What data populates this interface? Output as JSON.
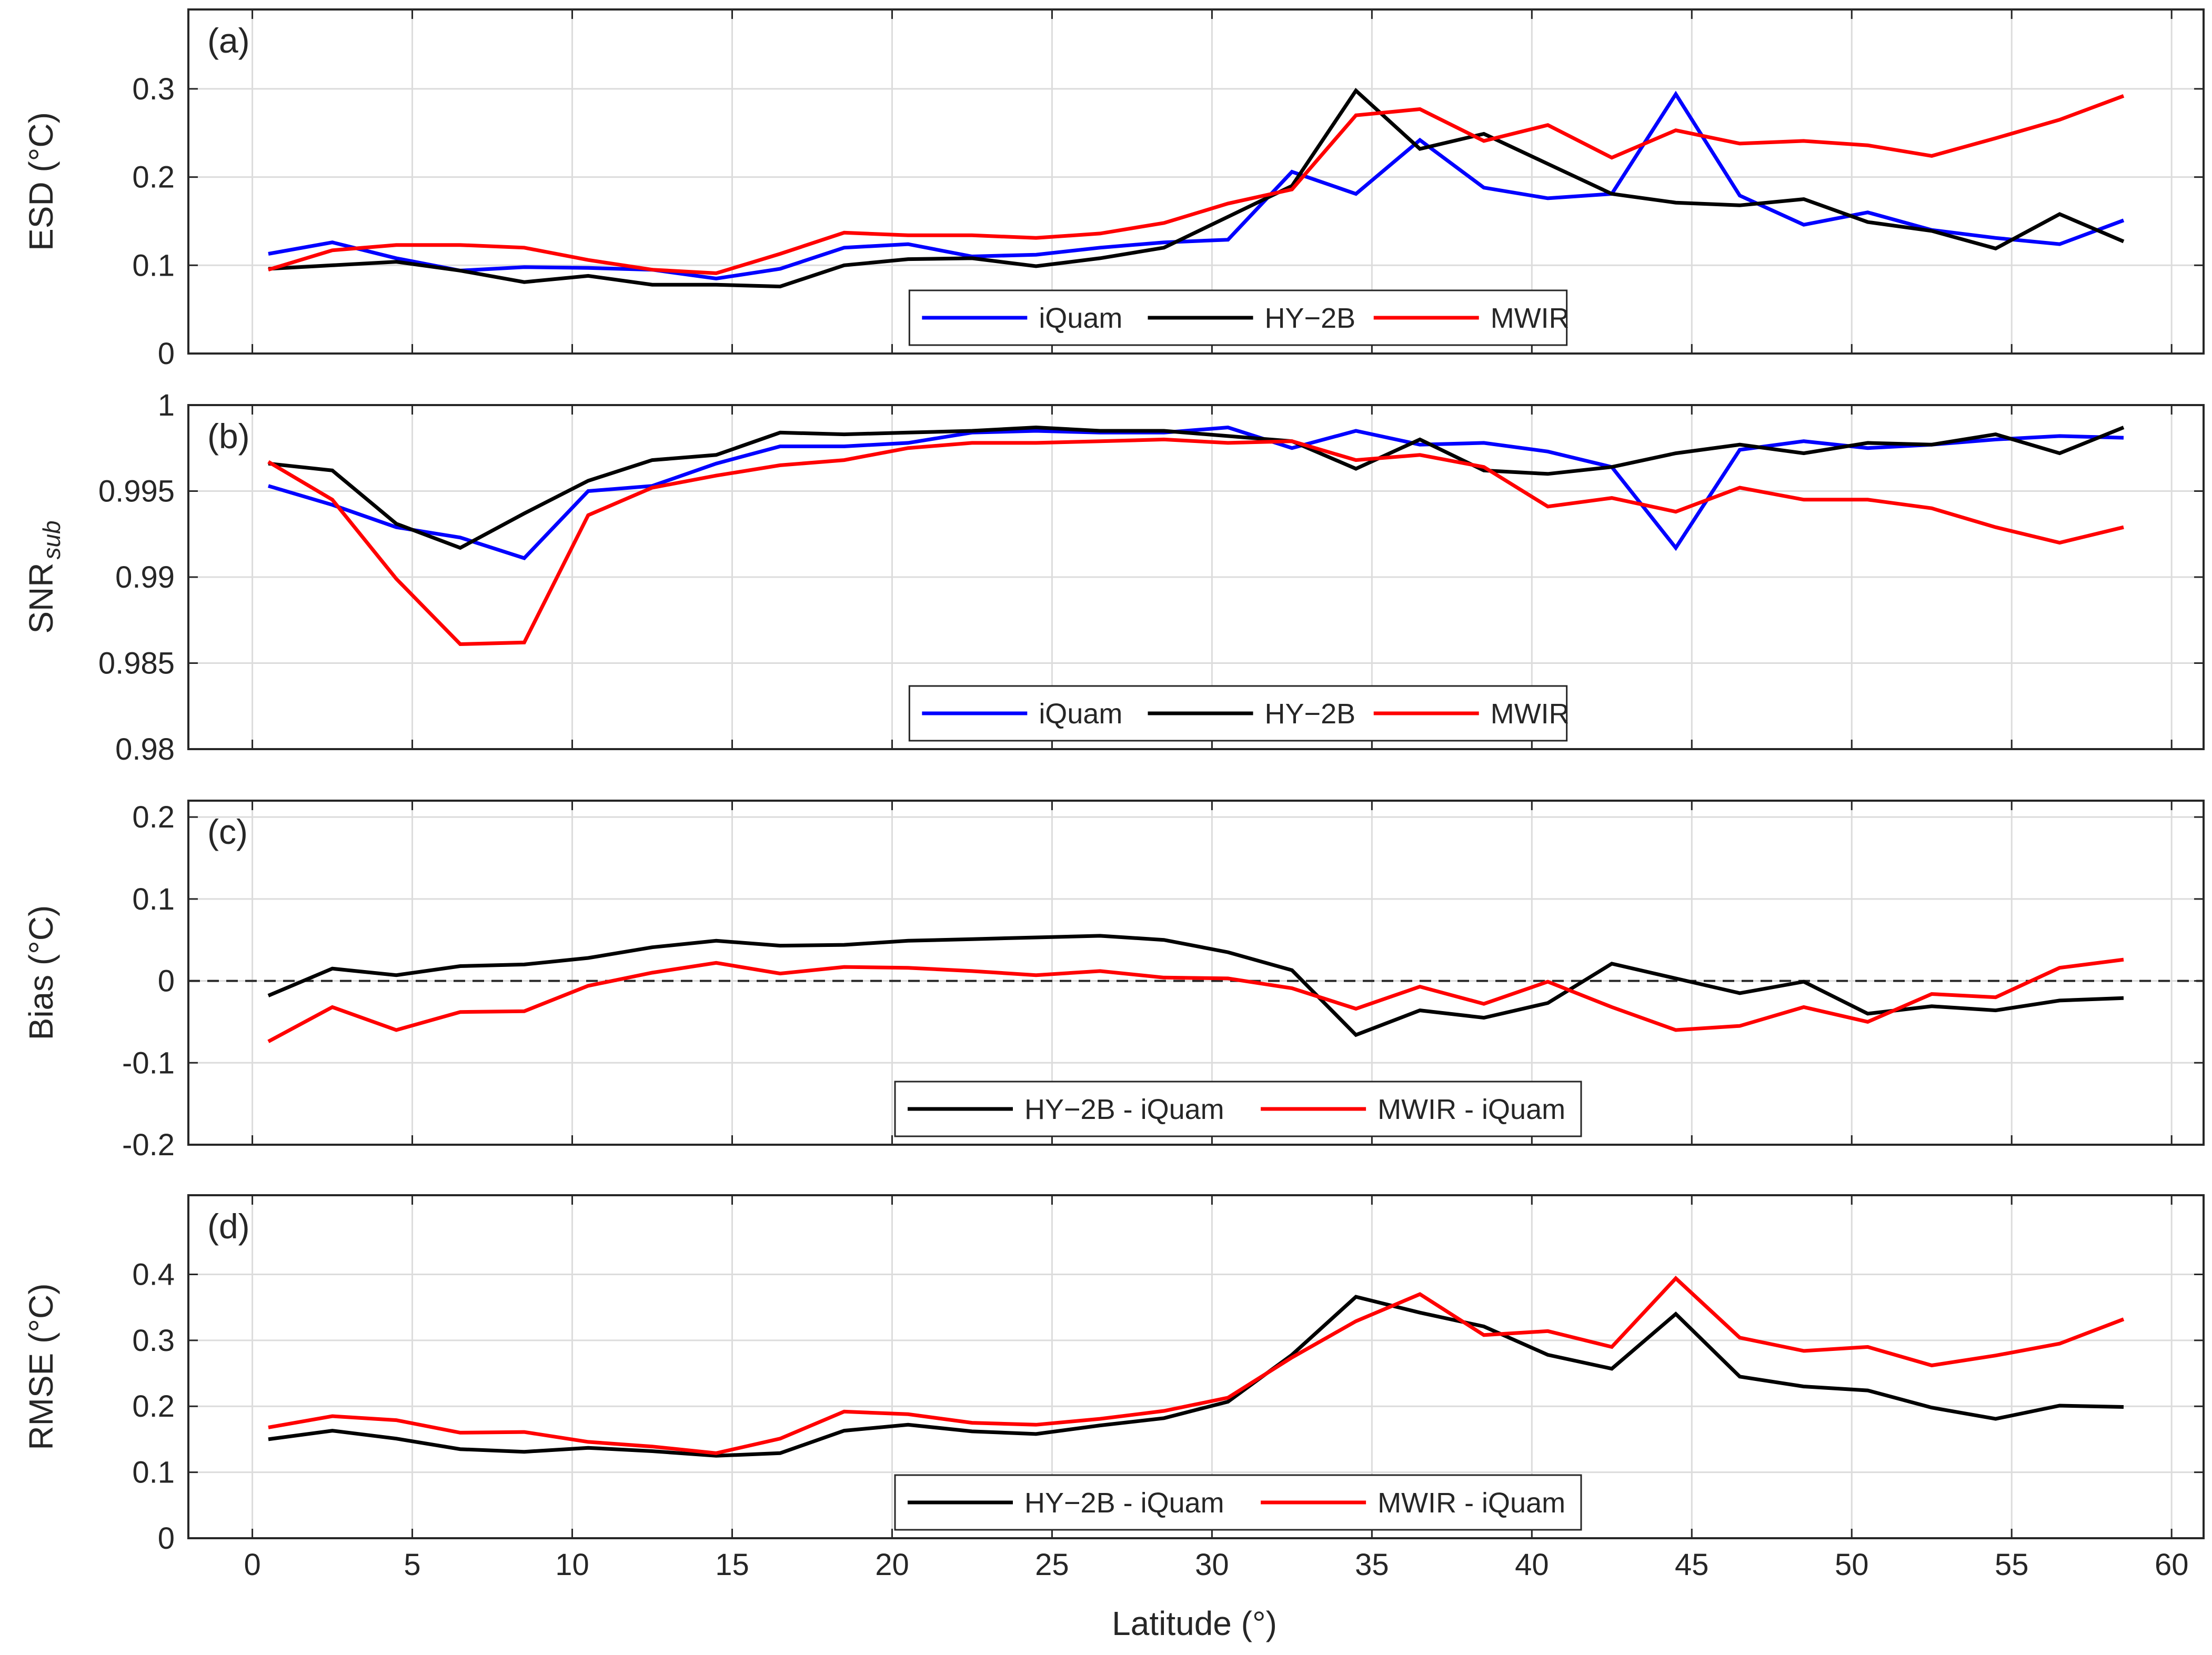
{
  "figure": {
    "xlabel": "Latitude (°)"
  },
  "colors": {
    "iQuam": "#0000ff",
    "HY-2B": "#000000",
    "MWIR": "#ff0000",
    "zero_line": "#262626"
  },
  "chart_data": [
    {
      "type": "line",
      "panel_tag": "(a)",
      "ylabel": "ESD (°C)",
      "ylabel_sub": "",
      "xlim": [
        -2,
        61
      ],
      "ylim": [
        0,
        0.39
      ],
      "xticks": [
        0,
        5,
        10,
        15,
        20,
        25,
        30,
        35,
        40,
        45,
        50,
        55,
        60
      ],
      "xtick_labels": [
        "0",
        "5",
        "10",
        "15",
        "20",
        "25",
        "30",
        "35",
        "40",
        "45",
        "50",
        "55",
        "60"
      ],
      "yticks": [
        0,
        0.1,
        0.2,
        0.3
      ],
      "ytick_labels": [
        "0",
        "0.1",
        "0.2",
        "0.3"
      ],
      "zero_line": false,
      "legend_position": "bottom-center",
      "x": [
        0.5,
        2.5,
        4.5,
        6.5,
        8.5,
        10.5,
        12.5,
        14.5,
        16.5,
        18.5,
        20.5,
        22.5,
        24.5,
        26.5,
        28.5,
        30.5,
        32.5,
        34.5,
        36.5,
        38.5,
        40.5,
        42.5,
        44.5,
        46.5,
        48.5,
        50.5,
        52.5,
        54.5,
        56.5,
        58.5
      ],
      "series": [
        {
          "name": "iQuam",
          "color_key": "iQuam",
          "values": [
            0.113,
            0.126,
            0.108,
            0.094,
            0.098,
            0.097,
            0.095,
            0.085,
            0.096,
            0.12,
            0.124,
            0.11,
            0.112,
            0.12,
            0.126,
            0.129,
            0.206,
            0.181,
            0.242,
            0.188,
            0.176,
            0.181,
            0.294,
            0.179,
            0.146,
            0.16,
            0.14,
            0.131,
            0.124,
            0.151
          ]
        },
        {
          "name": "HY−2B",
          "color_key": "HY-2B",
          "values": [
            0.096,
            0.1,
            0.104,
            0.094,
            0.081,
            0.088,
            0.078,
            0.078,
            0.076,
            0.1,
            0.107,
            0.108,
            0.099,
            0.108,
            0.12,
            0.155,
            0.19,
            0.298,
            0.232,
            0.249,
            0.215,
            0.181,
            0.171,
            0.168,
            0.175,
            0.149,
            0.139,
            0.119,
            0.158,
            0.127
          ]
        },
        {
          "name": "MWIR",
          "color_key": "MWIR",
          "values": [
            0.095,
            0.117,
            0.123,
            0.123,
            0.12,
            0.106,
            0.095,
            0.091,
            0.113,
            0.137,
            0.134,
            0.134,
            0.131,
            0.136,
            0.148,
            0.17,
            0.186,
            0.27,
            0.277,
            0.241,
            0.259,
            0.222,
            0.253,
            0.238,
            0.241,
            0.236,
            0.224,
            0.244,
            0.265,
            0.292
          ]
        }
      ]
    },
    {
      "type": "line",
      "panel_tag": "(b)",
      "ylabel": "SNR",
      "ylabel_sub": "sub",
      "xlim": [
        -2,
        61
      ],
      "ylim": [
        0.98,
        1.0
      ],
      "xticks": [
        0,
        5,
        10,
        15,
        20,
        25,
        30,
        35,
        40,
        45,
        50,
        55,
        60
      ],
      "xtick_labels": [
        "0",
        "5",
        "10",
        "15",
        "20",
        "25",
        "30",
        "35",
        "40",
        "45",
        "50",
        "55",
        "60"
      ],
      "yticks": [
        0.98,
        0.985,
        0.99,
        0.995,
        1.0
      ],
      "ytick_labels": [
        "0.98",
        "0.985",
        "0.99",
        "0.995",
        "1"
      ],
      "zero_line": false,
      "legend_position": "bottom-center",
      "x": [
        0.5,
        2.5,
        4.5,
        6.5,
        8.5,
        10.5,
        12.5,
        14.5,
        16.5,
        18.5,
        20.5,
        22.5,
        24.5,
        26.5,
        28.5,
        30.5,
        32.5,
        34.5,
        36.5,
        38.5,
        40.5,
        42.5,
        44.5,
        46.5,
        48.5,
        50.5,
        52.5,
        54.5,
        56.5,
        58.5
      ],
      "series": [
        {
          "name": "iQuam",
          "color_key": "iQuam",
          "values": [
            0.9953,
            0.9942,
            0.9929,
            0.9923,
            0.9911,
            0.995,
            0.9953,
            0.9966,
            0.9976,
            0.9976,
            0.9978,
            0.9984,
            0.9985,
            0.9984,
            0.9984,
            0.9987,
            0.9975,
            0.9985,
            0.9977,
            0.9978,
            0.9973,
            0.9964,
            0.9917,
            0.9974,
            0.9979,
            0.9975,
            0.9977,
            0.998,
            0.9982,
            0.9981
          ]
        },
        {
          "name": "HY−2B",
          "color_key": "HY-2B",
          "values": [
            0.9966,
            0.9962,
            0.9931,
            0.9917,
            0.9937,
            0.9956,
            0.9968,
            0.9971,
            0.9984,
            0.9983,
            0.9984,
            0.9985,
            0.9987,
            0.9985,
            0.9985,
            0.9982,
            0.9979,
            0.9963,
            0.998,
            0.9962,
            0.996,
            0.9964,
            0.9972,
            0.9977,
            0.9972,
            0.9978,
            0.9977,
            0.9983,
            0.9972,
            0.9987
          ]
        },
        {
          "name": "MWIR",
          "color_key": "MWIR",
          "values": [
            0.9967,
            0.9945,
            0.9899,
            0.9861,
            0.9862,
            0.9936,
            0.9952,
            0.9959,
            0.9965,
            0.9968,
            0.9975,
            0.9978,
            0.9978,
            0.9979,
            0.998,
            0.9978,
            0.9979,
            0.9968,
            0.9971,
            0.9964,
            0.9941,
            0.9946,
            0.9938,
            0.9952,
            0.9945,
            0.9945,
            0.994,
            0.9929,
            0.992,
            0.9929
          ]
        }
      ]
    },
    {
      "type": "line",
      "panel_tag": "(c)",
      "ylabel": "Bias (°C)",
      "ylabel_sub": "",
      "xlim": [
        -2,
        61
      ],
      "ylim": [
        -0.2,
        0.22
      ],
      "xticks": [
        0,
        5,
        10,
        15,
        20,
        25,
        30,
        35,
        40,
        45,
        50,
        55,
        60
      ],
      "xtick_labels": [
        "0",
        "5",
        "10",
        "15",
        "20",
        "25",
        "30",
        "35",
        "40",
        "45",
        "50",
        "55",
        "60"
      ],
      "yticks": [
        -0.2,
        -0.1,
        0,
        0.1,
        0.2
      ],
      "ytick_labels": [
        "-0.2",
        "-0.1",
        "0",
        "0.1",
        "0.2"
      ],
      "zero_line": true,
      "legend_position": "bottom-center",
      "x": [
        0.5,
        2.5,
        4.5,
        6.5,
        8.5,
        10.5,
        12.5,
        14.5,
        16.5,
        18.5,
        20.5,
        22.5,
        24.5,
        26.5,
        28.5,
        30.5,
        32.5,
        34.5,
        36.5,
        38.5,
        40.5,
        42.5,
        44.5,
        46.5,
        48.5,
        50.5,
        52.5,
        54.5,
        56.5,
        58.5
      ],
      "series": [
        {
          "name": "HY−2B - iQuam",
          "color_key": "HY-2B",
          "values": [
            -0.018,
            0.015,
            0.007,
            0.018,
            0.02,
            0.028,
            0.041,
            0.049,
            0.043,
            0.044,
            0.049,
            0.051,
            0.053,
            0.055,
            0.05,
            0.035,
            0.013,
            -0.066,
            -0.036,
            -0.045,
            -0.027,
            0.021,
            0.003,
            -0.015,
            -0.001,
            -0.04,
            -0.031,
            -0.036,
            -0.024,
            -0.021
          ]
        },
        {
          "name": "MWIR - iQuam",
          "color_key": "MWIR",
          "values": [
            -0.074,
            -0.032,
            -0.06,
            -0.038,
            -0.037,
            -0.006,
            0.01,
            0.022,
            0.009,
            0.017,
            0.016,
            0.012,
            0.007,
            0.012,
            0.004,
            0.003,
            -0.009,
            -0.034,
            -0.007,
            -0.028,
            -0.001,
            -0.032,
            -0.06,
            -0.055,
            -0.032,
            -0.05,
            -0.016,
            -0.02,
            0.016,
            0.026
          ]
        }
      ]
    },
    {
      "type": "line",
      "panel_tag": "(d)",
      "ylabel": "RMSE (°C)",
      "ylabel_sub": "",
      "xlim": [
        -2,
        61
      ],
      "ylim": [
        0,
        0.52
      ],
      "xticks": [
        0,
        5,
        10,
        15,
        20,
        25,
        30,
        35,
        40,
        45,
        50,
        55,
        60
      ],
      "xtick_labels": [
        "0",
        "5",
        "10",
        "15",
        "20",
        "25",
        "30",
        "35",
        "40",
        "45",
        "50",
        "55",
        "60"
      ],
      "yticks": [
        0,
        0.1,
        0.2,
        0.3,
        0.4
      ],
      "ytick_labels": [
        "0",
        "0.1",
        "0.2",
        "0.3",
        "0.4"
      ],
      "zero_line": false,
      "legend_position": "bottom-center",
      "x": [
        0.5,
        2.5,
        4.5,
        6.5,
        8.5,
        10.5,
        12.5,
        14.5,
        16.5,
        18.5,
        20.5,
        22.5,
        24.5,
        26.5,
        28.5,
        30.5,
        32.5,
        34.5,
        36.5,
        38.5,
        40.5,
        42.5,
        44.5,
        46.5,
        48.5,
        50.5,
        52.5,
        54.5,
        56.5,
        58.5
      ],
      "series": [
        {
          "name": "HY−2B - iQuam",
          "color_key": "HY-2B",
          "values": [
            0.15,
            0.163,
            0.151,
            0.135,
            0.131,
            0.137,
            0.132,
            0.125,
            0.129,
            0.163,
            0.172,
            0.162,
            0.158,
            0.171,
            0.182,
            0.207,
            0.278,
            0.366,
            0.342,
            0.321,
            0.278,
            0.257,
            0.34,
            0.245,
            0.23,
            0.224,
            0.198,
            0.181,
            0.201,
            0.199
          ]
        },
        {
          "name": "MWIR - iQuam",
          "color_key": "MWIR",
          "values": [
            0.168,
            0.185,
            0.179,
            0.16,
            0.161,
            0.146,
            0.139,
            0.129,
            0.151,
            0.192,
            0.188,
            0.175,
            0.172,
            0.181,
            0.193,
            0.213,
            0.274,
            0.329,
            0.37,
            0.308,
            0.314,
            0.29,
            0.394,
            0.304,
            0.284,
            0.29,
            0.262,
            0.277,
            0.295,
            0.332
          ]
        }
      ]
    }
  ]
}
